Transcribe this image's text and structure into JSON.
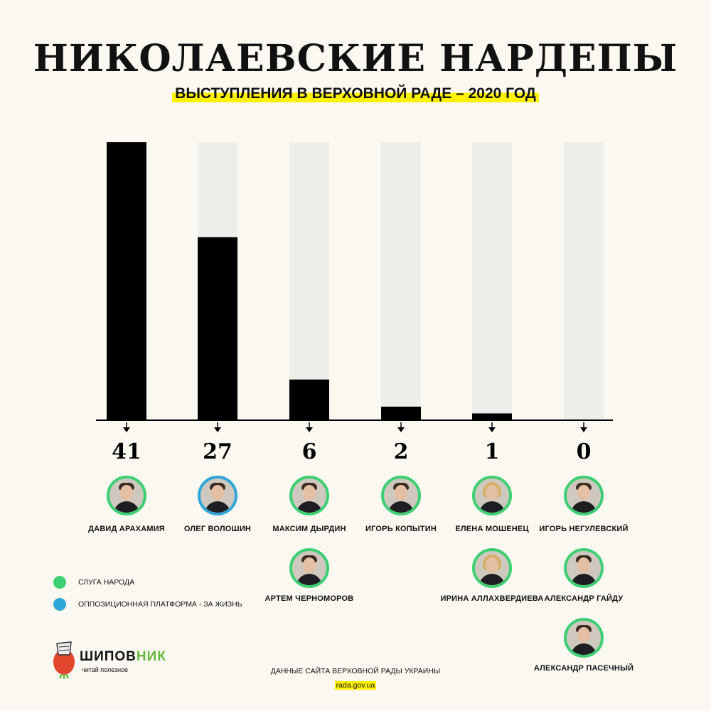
{
  "title": "НИКОЛАЕВСКИЕ НАРДЕПЫ",
  "subtitle": "ВЫСТУПЛЕНИЯ В ВЕРХОВНОЙ РАДЕ – 2020 ГОД",
  "colors": {
    "bar": "#000000",
    "track": "#eeeeea",
    "green": "#3ecf73",
    "blue": "#2fa6d8",
    "highlight": "#fff200"
  },
  "chart_data": {
    "type": "bar",
    "categories": [
      "41",
      "27",
      "6",
      "2",
      "1",
      "0"
    ],
    "values": [
      41,
      27,
      6,
      2,
      1,
      0
    ],
    "title": "НИКОЛАЕВСКИЕ НАРДЕПЫ",
    "ylim": [
      0,
      41
    ],
    "grid": false
  },
  "groups": [
    {
      "value": "41",
      "people": [
        {
          "name": "ДАВИД АРАХАМИЯ",
          "party": "green",
          "gender": "m"
        }
      ]
    },
    {
      "value": "27",
      "people": [
        {
          "name": "ОЛЕГ ВОЛОШИН",
          "party": "blue",
          "gender": "m"
        }
      ]
    },
    {
      "value": "6",
      "people": [
        {
          "name": "МАКСИМ ДЫРДИН",
          "party": "green",
          "gender": "m"
        },
        {
          "name": "АРТЕМ ЧЕРНОМОРОВ",
          "party": "green",
          "gender": "m"
        }
      ]
    },
    {
      "value": "2",
      "people": [
        {
          "name": "ИГОРЬ КОПЫТИН",
          "party": "green",
          "gender": "m"
        }
      ]
    },
    {
      "value": "1",
      "people": [
        {
          "name": "ЕЛЕНА МОШЕНЕЦ",
          "party": "green",
          "gender": "f"
        },
        {
          "name": "ИРИНА АЛЛАХВЕРДИЕВА",
          "party": "green",
          "gender": "f"
        }
      ]
    },
    {
      "value": "0",
      "people": [
        {
          "name": "ИГОРЬ НЕГУЛЕВСКИЙ",
          "party": "green",
          "gender": "m"
        },
        {
          "name": "АЛЕКСАНДР ГАЙДУ",
          "party": "green",
          "gender": "m"
        },
        {
          "name": "АЛЕКСАНДР ПАСЕЧНЫЙ",
          "party": "green",
          "gender": "m"
        }
      ]
    }
  ],
  "legend": [
    {
      "label": "СЛУГА НАРОДА",
      "color": "#3ecf73"
    },
    {
      "label": "ОППОЗИЦИОННАЯ ПЛАТФОРМА - ЗА ЖИЗНЬ",
      "color": "#2fa6d8"
    }
  ],
  "logo": {
    "name_main": "ШИПОВ",
    "name_accent": "НИК",
    "tagline": "читай полезное"
  },
  "source": {
    "line1": "ДАННЫЕ САЙТА ВЕРХОВНОЙ РАДЫ УКРАИНЫ",
    "line2": "rada.gov.ua"
  }
}
